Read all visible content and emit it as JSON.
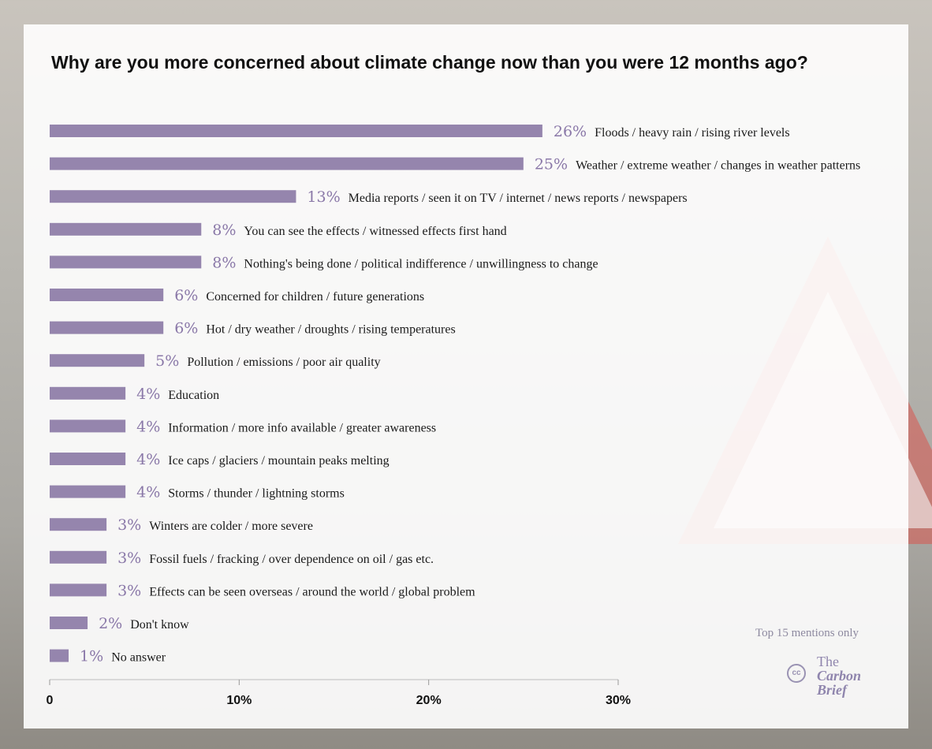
{
  "chart_data": {
    "type": "bar",
    "orientation": "horizontal",
    "title": "Why are you more concerned about climate change now than you were 12 months ago?",
    "categories": [
      "Floods / heavy rain / rising river levels",
      "Weather / extreme weather / changes in weather patterns",
      "Media reports / seen it on TV / internet / news reports / newspapers",
      "You can see the effects / witnessed effects first hand",
      "Nothing's being done / political indifference / unwillingness to change",
      "Concerned for children / future generations",
      "Hot / dry weather / droughts / rising temperatures",
      "Pollution / emissions / poor air quality",
      "Education",
      "Information / more info available / greater awareness",
      "Ice caps / glaciers / mountain peaks melting",
      "Storms / thunder / lightning storms",
      "Winters are colder / more severe",
      "Fossil fuels / fracking / over dependence on oil / gas etc.",
      "Effects can be seen overseas / around the world / global problem",
      "Don't know",
      "No answer"
    ],
    "values": [
      26,
      25,
      13,
      8,
      8,
      6,
      6,
      5,
      4,
      4,
      4,
      4,
      3,
      3,
      3,
      2,
      1
    ],
    "value_labels": [
      "26%",
      "25%",
      "13%",
      "8%",
      "8%",
      "6%",
      "6%",
      "5%",
      "4%",
      "4%",
      "4%",
      "4%",
      "3%",
      "3%",
      "3%",
      "2%",
      "1%"
    ],
    "xlim": [
      0,
      30
    ],
    "xticks": [
      0,
      10,
      20,
      30
    ],
    "xtick_labels": [
      "0",
      "10%",
      "20%",
      "30%"
    ],
    "bar_color": "#9585ad",
    "value_color": "#8a78a8",
    "grid": false
  },
  "note": "Top 15 mentions only",
  "brand": {
    "cc": "cc",
    "line1": "The",
    "line2": "Carbon",
    "line3": "Brief"
  }
}
